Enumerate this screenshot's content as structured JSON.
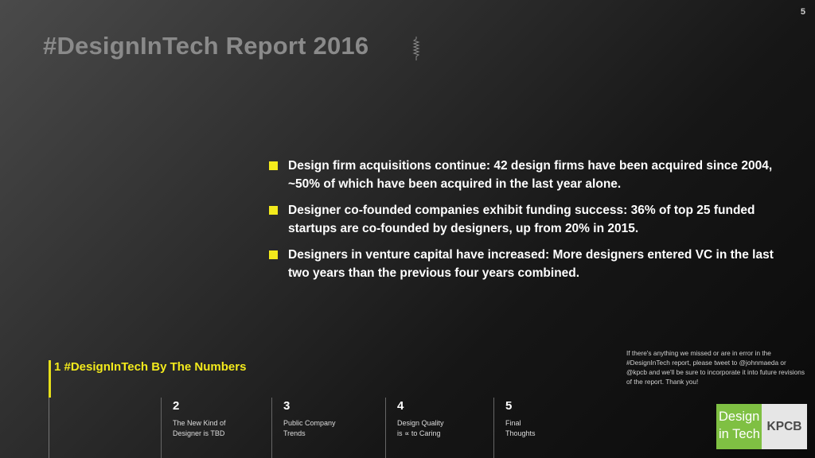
{
  "slide": {
    "number": "5",
    "title": "#DesignInTech Report 2016"
  },
  "bullets": [
    "Design firm acquisitions continue: 42 design firms have been acquired since 2004, ~50% of which have been acquired in the last year alone.",
    "Designer co-founded companies exhibit funding success: 36% of top 25 funded startups are co-founded by designers, up from 20% in 2015.",
    "Designers in venture capital have increased: More designers entered VC in the last two years than the previous four years combined."
  ],
  "accent_color": "#f3ea1c",
  "current_section": {
    "label": "1 #DesignInTech By The Numbers"
  },
  "sections": [
    {
      "number": "2",
      "label": "The New Kind of\nDesigner is TBD"
    },
    {
      "number": "3",
      "label": "Public Company\nTrends"
    },
    {
      "number": "4",
      "label": "Design Quality\nis ∝ to Caring"
    },
    {
      "number": "5",
      "label": "Final\nThoughts"
    }
  ],
  "note": "If there's anything we missed or are in error in the #DesignInTech report, please tweet to @johnmaeda or @kpcb and we'll be sure to incorporate it into future revisions of the report. Thank you!",
  "logo": {
    "line1": "Design",
    "line2": "in Tech",
    "brand": "KPCB",
    "green": "#7fc043"
  }
}
